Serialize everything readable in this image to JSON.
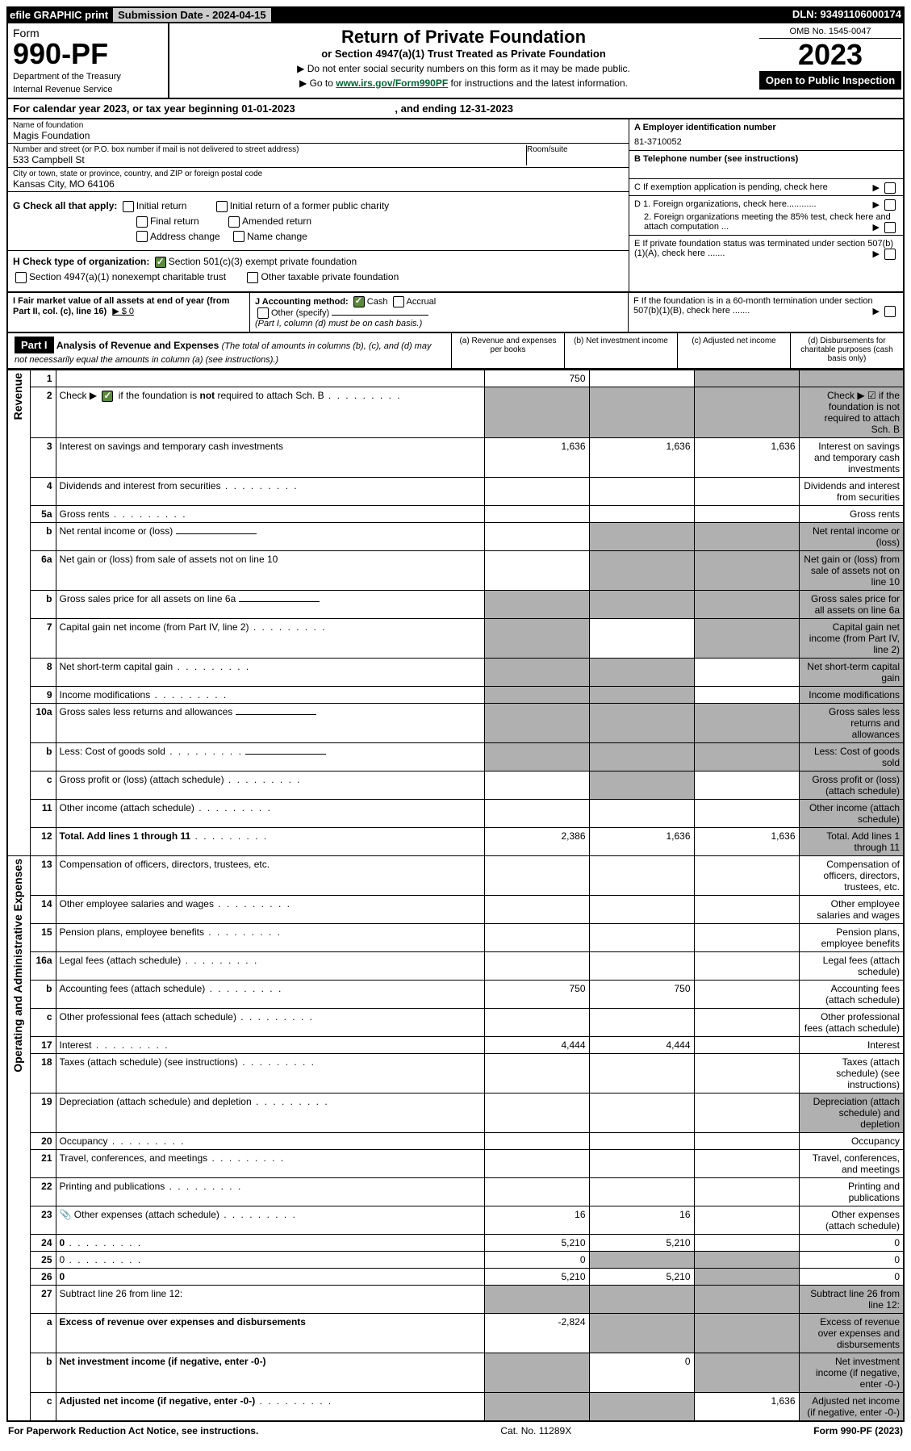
{
  "topbar": {
    "efile": "efile GRAPHIC print",
    "sub_label": "Submission Date - 2024-04-15",
    "dln": "DLN: 93491106000174"
  },
  "header": {
    "form": "Form",
    "no": "990-PF",
    "dept": "Department of the Treasury",
    "irs": "Internal Revenue Service",
    "title": "Return of Private Foundation",
    "subtitle": "or Section 4947(a)(1) Trust Treated as Private Foundation",
    "instr1": "▶ Do not enter social security numbers on this form as it may be made public.",
    "instr2_pre": "▶ Go to ",
    "instr2_link": "www.irs.gov/Form990PF",
    "instr2_post": " for instructions and the latest information.",
    "omb": "OMB No. 1545-0047",
    "year": "2023",
    "open": "Open to Public Inspection"
  },
  "period": {
    "text": "For calendar year 2023, or tax year beginning 01-01-2023",
    "ending": ", and ending 12-31-2023"
  },
  "entity": {
    "name_lbl": "Name of foundation",
    "name": "Magis Foundation",
    "addr_lbl": "Number and street (or P.O. box number if mail is not delivered to street address)",
    "addr": "533 Campbell St",
    "room_lbl": "Room/suite",
    "city_lbl": "City or town, state or province, country, and ZIP or foreign postal code",
    "city": "Kansas City, MO  64106",
    "a_lbl": "A Employer identification number",
    "a_val": "81-3710052",
    "b_lbl": "B Telephone number (see instructions)",
    "c_lbl": "C If exemption application is pending, check here"
  },
  "g": {
    "lbl": "G Check all that apply:",
    "opts": [
      "Initial return",
      "Initial return of a former public charity",
      "Final return",
      "Amended return",
      "Address change",
      "Name change"
    ]
  },
  "h": {
    "lbl": "H Check type of organization:",
    "o1": "Section 501(c)(3) exempt private foundation",
    "o2": "Section 4947(a)(1) nonexempt charitable trust",
    "o3": "Other taxable private foundation"
  },
  "d": {
    "d1": "D 1. Foreign organizations, check here............",
    "d2": "2. Foreign organizations meeting the 85% test, check here and attach computation ...",
    "e": "E  If private foundation status was terminated under section 507(b)(1)(A), check here .......",
    "f": "F  If the foundation is in a 60-month termination under section 507(b)(1)(B), check here ......."
  },
  "i": {
    "lbl": "I Fair market value of all assets at end of year (from Part II, col. (c), line 16)",
    "val": "▶ $  0"
  },
  "j": {
    "lbl": "J Accounting method:",
    "cash": "Cash",
    "accrual": "Accrual",
    "other": "Other (specify)",
    "note": "(Part I, column (d) must be on cash basis.)"
  },
  "part1": {
    "head": "Part I",
    "title": "Analysis of Revenue and Expenses",
    "note": "(The total of amounts in columns (b), (c), and (d) may not necessarily equal the amounts in column (a) (see instructions).)",
    "ca": "(a)   Revenue and expenses per books",
    "cb": "(b)   Net investment income",
    "cc": "(c)   Adjusted net income",
    "cd": "(d)   Disbursements for charitable purposes (cash basis only)",
    "side_rev": "Revenue",
    "side_exp": "Operating and Administrative Expenses"
  },
  "rows": [
    {
      "n": "1",
      "d": "",
      "a": "750",
      "b": "",
      "c": "",
      "sb": false,
      "sc": true,
      "sd": true
    },
    {
      "n": "2",
      "d": "Check ▶ ☑ if the foundation is not required to attach Sch. B",
      "sa": true,
      "sb": true,
      "sc": true,
      "sd": true,
      "dots": true
    },
    {
      "n": "3",
      "d": "Interest on savings and temporary cash investments",
      "a": "1,636",
      "b": "1,636",
      "c": "1,636"
    },
    {
      "n": "4",
      "d": "Dividends and interest from securities",
      "dots": true
    },
    {
      "n": "5a",
      "d": "Gross rents",
      "dots": true
    },
    {
      "n": "b",
      "d": "Net rental income or (loss)",
      "inline": true,
      "sa": false,
      "sb": true,
      "sc": true,
      "sd": true
    },
    {
      "n": "6a",
      "d": "Net gain or (loss) from sale of assets not on line 10",
      "sb": true,
      "sc": true,
      "sd": true
    },
    {
      "n": "b",
      "d": "Gross sales price for all assets on line 6a",
      "inline": true,
      "sa": true,
      "sb": true,
      "sc": true,
      "sd": true
    },
    {
      "n": "7",
      "d": "Capital gain net income (from Part IV, line 2)",
      "dots": true,
      "sa": true,
      "sc": true,
      "sd": true
    },
    {
      "n": "8",
      "d": "Net short-term capital gain",
      "dots": true,
      "sa": true,
      "sb": true,
      "sd": true
    },
    {
      "n": "9",
      "d": "Income modifications",
      "dots": true,
      "sa": true,
      "sb": true,
      "sd": true
    },
    {
      "n": "10a",
      "d": "Gross sales less returns and allowances",
      "inline": true,
      "sa": true,
      "sb": true,
      "sc": true,
      "sd": true
    },
    {
      "n": "b",
      "d": "Less: Cost of goods sold",
      "dots": true,
      "inline": true,
      "sa": true,
      "sb": true,
      "sc": true,
      "sd": true
    },
    {
      "n": "c",
      "d": "Gross profit or (loss) (attach schedule)",
      "dots": true,
      "sb": true,
      "sd": true
    },
    {
      "n": "11",
      "d": "Other income (attach schedule)",
      "dots": true,
      "sd": true
    },
    {
      "n": "12",
      "d": "Total. Add lines 1 through 11",
      "bold": true,
      "dots": true,
      "a": "2,386",
      "b": "1,636",
      "c": "1,636",
      "sd": true
    }
  ],
  "exp_rows": [
    {
      "n": "13",
      "d": "Compensation of officers, directors, trustees, etc."
    },
    {
      "n": "14",
      "d": "Other employee salaries and wages",
      "dots": true
    },
    {
      "n": "15",
      "d": "Pension plans, employee benefits",
      "dots": true
    },
    {
      "n": "16a",
      "d": "Legal fees (attach schedule)",
      "dots": true
    },
    {
      "n": "b",
      "d": "Accounting fees (attach schedule)",
      "dots": true,
      "a": "750",
      "b": "750"
    },
    {
      "n": "c",
      "d": "Other professional fees (attach schedule)",
      "dots": true
    },
    {
      "n": "17",
      "d": "Interest",
      "dots": true,
      "a": "4,444",
      "b": "4,444"
    },
    {
      "n": "18",
      "d": "Taxes (attach schedule) (see instructions)",
      "dots": true
    },
    {
      "n": "19",
      "d": "Depreciation (attach schedule) and depletion",
      "dots": true,
      "sd": true
    },
    {
      "n": "20",
      "d": "Occupancy",
      "dots": true
    },
    {
      "n": "21",
      "d": "Travel, conferences, and meetings",
      "dots": true
    },
    {
      "n": "22",
      "d": "Printing and publications",
      "dots": true
    },
    {
      "n": "23",
      "d": "Other expenses (attach schedule)",
      "dots": true,
      "icon": true,
      "a": "16",
      "b": "16"
    },
    {
      "n": "24",
      "d": "0",
      "bold": true,
      "dots": true,
      "a": "5,210",
      "b": "5,210"
    },
    {
      "n": "25",
      "d": "0",
      "dots": true,
      "a": "0",
      "sb": true,
      "sc": true
    },
    {
      "n": "26",
      "d": "0",
      "bold": true,
      "a": "5,210",
      "b": "5,210",
      "sc": true
    },
    {
      "n": "27",
      "d": "Subtract line 26 from line 12:",
      "sa": true,
      "sb": true,
      "sc": true,
      "sd": true
    },
    {
      "n": "a",
      "d": "Excess of revenue over expenses and disbursements",
      "bold": true,
      "a": "-2,824",
      "sb": true,
      "sc": true,
      "sd": true
    },
    {
      "n": "b",
      "d": "Net investment income (if negative, enter -0-)",
      "bold": true,
      "sa": true,
      "b": "0",
      "sc": true,
      "sd": true
    },
    {
      "n": "c",
      "d": "Adjusted net income (if negative, enter -0-)",
      "bold": true,
      "dots": true,
      "sa": true,
      "sb": true,
      "c": "1,636",
      "sd": true
    }
  ],
  "footer": {
    "l": "For Paperwork Reduction Act Notice, see instructions.",
    "m": "Cat. No. 11289X",
    "r": "Form 990-PF (2023)"
  }
}
